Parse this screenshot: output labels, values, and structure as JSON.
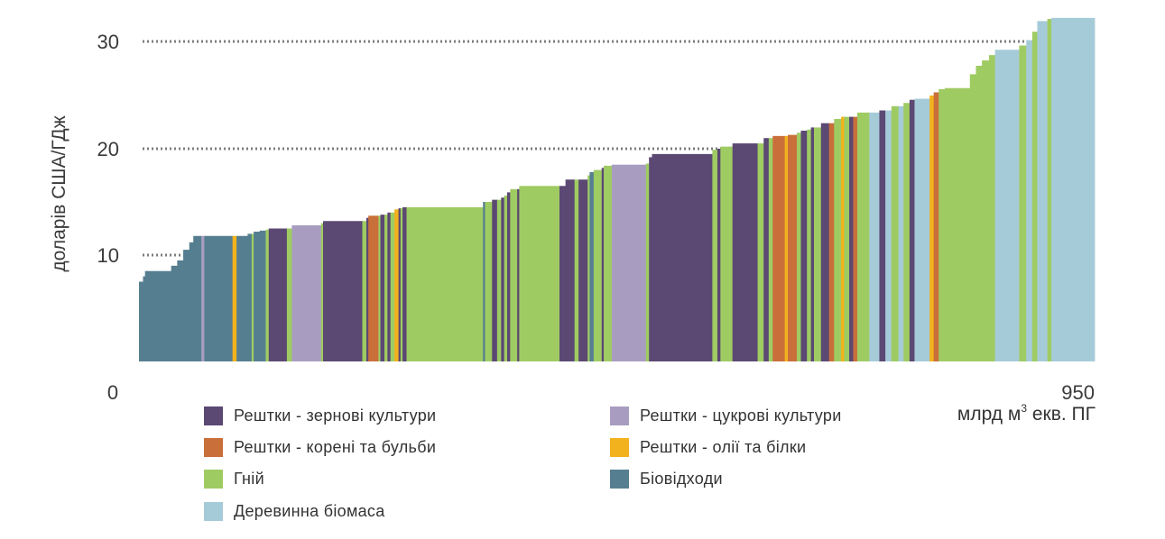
{
  "chart_data": {
    "type": "bar",
    "subtype": "supply-cost-curve",
    "ylabel": "доларів США/ГДж",
    "xlabel_parts": {
      "prefix": "млрд м",
      "sup": "3",
      "suffix": " екв. ПГ"
    },
    "xlim": [
      0,
      950
    ],
    "ylim": [
      0,
      33
    ],
    "x_ticks": [
      {
        "value": 0,
        "label": "0"
      },
      {
        "value": 950,
        "label": "950"
      }
    ],
    "y_ticks": [
      {
        "value": 10,
        "label": "10"
      },
      {
        "value": 20,
        "label": "20"
      },
      {
        "value": 30,
        "label": "30"
      }
    ],
    "grid": "dotted horizontal lines at 10, 20, 30",
    "series": [
      {
        "key": "grain",
        "name": "Рештки - зернові культури",
        "color": "#5b4873"
      },
      {
        "key": "sugar",
        "name": "Рештки - цукрові культури",
        "color": "#a89dc0"
      },
      {
        "key": "roots",
        "name": "Рештки - корені та бульби",
        "color": "#c96f3a"
      },
      {
        "key": "oil",
        "name": "Рештки - олії та білки",
        "color": "#f2b21d"
      },
      {
        "key": "manure",
        "name": "Гній",
        "color": "#9fcb63"
      },
      {
        "key": "waste",
        "name": "Біовідходи",
        "color": "#557f90"
      },
      {
        "key": "wood",
        "name": "Деревинна біомаса",
        "color": "#a6cbd8"
      }
    ],
    "segments": [
      [
        "waste",
        0,
        4,
        7.5
      ],
      [
        "waste",
        4,
        6,
        8
      ],
      [
        "waste",
        6,
        8,
        8.5
      ],
      [
        "waste",
        8,
        32,
        8.5
      ],
      [
        "waste",
        32,
        38,
        9
      ],
      [
        "waste",
        38,
        44,
        9.5
      ],
      [
        "waste",
        44,
        50,
        10.5
      ],
      [
        "waste",
        50,
        54,
        11.2
      ],
      [
        "waste",
        54,
        62,
        11.8
      ],
      [
        "sugar",
        62,
        65,
        11.8
      ],
      [
        "waste",
        65,
        93,
        11.8
      ],
      [
        "oil",
        93,
        97,
        11.8
      ],
      [
        "waste",
        97,
        108,
        11.8
      ],
      [
        "waste",
        108,
        112,
        12
      ],
      [
        "manure",
        112,
        114,
        12
      ],
      [
        "waste",
        114,
        120,
        12.2
      ],
      [
        "waste",
        120,
        126,
        12.3
      ],
      [
        "manure",
        126,
        129,
        12.4
      ],
      [
        "grain",
        129,
        147,
        12.5
      ],
      [
        "manure",
        147,
        152,
        12.5
      ],
      [
        "sugar",
        152,
        181,
        12.8
      ],
      [
        "manure",
        181,
        183,
        13
      ],
      [
        "grain",
        183,
        222,
        13.2
      ],
      [
        "manure",
        222,
        226,
        13.2
      ],
      [
        "grain",
        226,
        228,
        13.5
      ],
      [
        "roots",
        228,
        238,
        13.7
      ],
      [
        "manure",
        238,
        240,
        13.7
      ],
      [
        "grain",
        240,
        244,
        13.8
      ],
      [
        "manure",
        244,
        247,
        13.8
      ],
      [
        "grain",
        247,
        250,
        14
      ],
      [
        "manure",
        250,
        254,
        14
      ],
      [
        "oil",
        254,
        258,
        14.3
      ],
      [
        "grain",
        258,
        260,
        14.4
      ],
      [
        "manure",
        260,
        262,
        14.4
      ],
      [
        "grain",
        262,
        266,
        14.5
      ],
      [
        "manure",
        266,
        280,
        14.5
      ],
      [
        "manure",
        280,
        342,
        14.5
      ],
      [
        "waste",
        342,
        344,
        15
      ],
      [
        "manure",
        344,
        351,
        15
      ],
      [
        "grain",
        351,
        356,
        15.2
      ],
      [
        "manure",
        356,
        360,
        15.2
      ],
      [
        "grain",
        360,
        363,
        15.4
      ],
      [
        "manure",
        363,
        366,
        15.6
      ],
      [
        "grain",
        366,
        369,
        15.9
      ],
      [
        "manure",
        369,
        376,
        16.2
      ],
      [
        "grain",
        376,
        378,
        16.2
      ],
      [
        "manure",
        378,
        388,
        16.5
      ],
      [
        "manure",
        388,
        418,
        16.5
      ],
      [
        "grain",
        418,
        424,
        16.5
      ],
      [
        "grain",
        424,
        433,
        17.1
      ],
      [
        "manure",
        433,
        437,
        17.1
      ],
      [
        "grain",
        437,
        446,
        17.1
      ],
      [
        "manure",
        446,
        448,
        17.5
      ],
      [
        "waste",
        448,
        452,
        17.8
      ],
      [
        "manure",
        452,
        460,
        18
      ],
      [
        "grain",
        460,
        462,
        18.2
      ],
      [
        "manure",
        462,
        470,
        18.4
      ],
      [
        "sugar",
        470,
        504,
        18.5
      ],
      [
        "manure",
        504,
        507,
        18.6
      ],
      [
        "grain",
        507,
        510,
        19.2
      ],
      [
        "grain",
        510,
        570,
        19.5
      ],
      [
        "manure",
        570,
        575,
        19.9
      ],
      [
        "grain",
        575,
        578,
        20
      ],
      [
        "manure",
        578,
        590,
        20.2
      ],
      [
        "grain",
        590,
        615,
        20.5
      ],
      [
        "manure",
        615,
        621,
        20.5
      ],
      [
        "grain",
        621,
        626,
        21
      ],
      [
        "manure",
        626,
        630,
        21
      ],
      [
        "roots",
        630,
        642,
        21.2
      ],
      [
        "oil",
        642,
        645,
        21.2
      ],
      [
        "roots",
        645,
        654,
        21.3
      ],
      [
        "manure",
        654,
        658,
        21.5
      ],
      [
        "grain",
        658,
        664,
        21.7
      ],
      [
        "manure",
        664,
        668,
        21.8
      ],
      [
        "grain",
        668,
        671,
        22
      ],
      [
        "manure",
        671,
        678,
        22
      ],
      [
        "grain",
        678,
        686,
        22.4
      ],
      [
        "roots",
        686,
        691,
        22.4
      ],
      [
        "manure",
        691,
        698,
        22.8
      ],
      [
        "oil",
        698,
        701,
        23
      ],
      [
        "manure",
        701,
        706,
        23
      ],
      [
        "grain",
        706,
        710,
        23
      ],
      [
        "roots",
        710,
        714,
        23
      ],
      [
        "manure",
        714,
        726,
        23.4
      ],
      [
        "wood",
        726,
        736,
        23.4
      ],
      [
        "grain",
        736,
        742,
        23.6
      ],
      [
        "wood",
        742,
        748,
        23.6
      ],
      [
        "manure",
        748,
        755,
        24
      ],
      [
        "wood",
        755,
        760,
        24
      ],
      [
        "manure",
        760,
        766,
        24.3
      ],
      [
        "grain",
        766,
        771,
        24.6
      ],
      [
        "wood",
        771,
        786,
        24.7
      ],
      [
        "oil",
        786,
        790,
        25
      ],
      [
        "roots",
        790,
        795,
        25.3
      ],
      [
        "manure",
        795,
        801,
        25.6
      ],
      [
        "manure",
        801,
        826,
        25.7
      ],
      [
        "manure",
        826,
        832,
        27
      ],
      [
        "manure",
        832,
        838,
        27.8
      ],
      [
        "manure",
        838,
        845,
        28.3
      ],
      [
        "manure",
        845,
        851,
        28.8
      ],
      [
        "wood",
        851,
        875,
        29.3
      ],
      [
        "manure",
        875,
        882,
        29.7
      ],
      [
        "wood",
        882,
        888,
        30.2
      ],
      [
        "manure",
        888,
        893,
        31
      ],
      [
        "wood",
        893,
        903,
        32
      ],
      [
        "manure",
        903,
        907,
        32.2
      ],
      [
        "wood",
        907,
        950,
        32.3
      ]
    ]
  }
}
